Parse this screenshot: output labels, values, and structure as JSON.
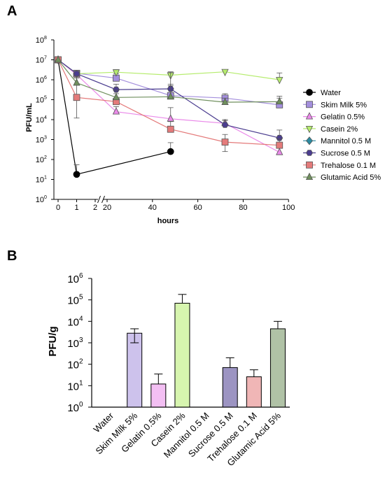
{
  "panels": {
    "a_label": "A",
    "b_label": "B"
  },
  "colors": {
    "water": "#000000",
    "skim_milk": "#a48fdd",
    "gelatin": "#ea8ae9",
    "casein": "#b6ec6e",
    "mannitol": "#2b8aa0",
    "sucrose": "#4b3d8f",
    "trehalose": "#e47a7a",
    "glutamic": "#6f8f5d"
  },
  "chart_data": [
    {
      "type": "line",
      "title": "",
      "xlabel": "hours",
      "ylabel": "PFU/mL",
      "yscale": "log",
      "ylim": [
        1,
        100000000
      ],
      "y_tick_labels": [
        "10",
        "10",
        "10",
        "10",
        "10",
        "10",
        "10",
        "10",
        "10"
      ],
      "y_tick_exponents": [
        "0",
        "1",
        "2",
        "3",
        "4",
        "5",
        "6",
        "7",
        "8"
      ],
      "x_axis_broken": true,
      "x_segments": [
        {
          "range": [
            0,
            2
          ],
          "ticks": [
            "0",
            "1",
            "2"
          ]
        },
        {
          "range": [
            20,
            100
          ],
          "ticks": [
            "20",
            "40",
            "60",
            "80",
            "100"
          ]
        }
      ],
      "legend_position": "right",
      "series": [
        {
          "name": "Water",
          "color_key": "water",
          "marker": "circle",
          "x": [
            0,
            1,
            48
          ],
          "y": [
            10000000,
            18,
            250
          ],
          "err_hi": [
            null,
            55,
            700
          ]
        },
        {
          "name": "Skim Milk 5%",
          "color_key": "skim_milk",
          "marker": "square",
          "x": [
            0,
            1,
            24,
            48,
            72,
            96
          ],
          "y": [
            10000000,
            2100000,
            1200000,
            160000,
            120000,
            55000
          ],
          "err_hi": [
            null,
            3000000,
            2000000,
            500000,
            200000,
            150000
          ]
        },
        {
          "name": "Gelatin 0.5%",
          "color_key": "gelatin",
          "marker": "triangle-up",
          "x": [
            0,
            1,
            24,
            48,
            72,
            96
          ],
          "y": [
            10000000,
            1800000,
            25000,
            11000,
            6500,
            230
          ],
          "err_hi": [
            null,
            2500000,
            45000,
            40000,
            10000,
            null
          ]
        },
        {
          "name": "Casein 2%",
          "color_key": "casein",
          "marker": "triangle-down",
          "x": [
            0,
            1,
            24,
            48,
            72,
            96
          ],
          "y": [
            10000000,
            2000000,
            2400000,
            1700000,
            2500000,
            1000000
          ],
          "err_hi": [
            null,
            3000000,
            3200000,
            2500000,
            3200000,
            2200000
          ]
        },
        {
          "name": "Mannitol 0.5 M",
          "color_key": "mannitol",
          "marker": "diamond",
          "x": [
            0
          ],
          "y": [
            10000000
          ],
          "err_hi": [
            null
          ]
        },
        {
          "name": "Sucrose 0.5 M",
          "color_key": "sucrose",
          "marker": "hexagon",
          "x": [
            0,
            1,
            24,
            48,
            72,
            96
          ],
          "y": [
            10000000,
            2000000,
            320000,
            350000,
            5500,
            1200
          ],
          "err_hi": [
            null,
            2600000,
            600000,
            2300000,
            9000,
            3000
          ]
        },
        {
          "name": "Trehalose 0.1 M",
          "color_key": "trehalose",
          "marker": "square",
          "x": [
            0,
            1,
            24,
            48,
            72,
            96
          ],
          "y": [
            10000000,
            130000,
            80000,
            3300,
            750,
            520
          ],
          "err_hi": [
            null,
            1500000,
            200000,
            8000,
            1800,
            1100
          ],
          "err_lo": [
            null,
            12000,
            null,
            null,
            250,
            null
          ]
        },
        {
          "name": "Glutamic Acid 5%",
          "color_key": "glutamic",
          "marker": "triangle-up",
          "x": [
            0,
            1,
            24,
            48,
            72,
            96
          ],
          "y": [
            10000000,
            700000,
            130000,
            140000,
            75000,
            80000
          ],
          "err_hi": [
            null,
            1200000,
            300000,
            600000,
            120000,
            120000
          ]
        }
      ]
    },
    {
      "type": "bar",
      "title": "",
      "xlabel": "",
      "ylabel": "PFU/g",
      "yscale": "log",
      "ylim": [
        1,
        1000000
      ],
      "y_tick_labels": [
        "10",
        "10",
        "10",
        "10",
        "10",
        "10",
        "10"
      ],
      "y_tick_exponents": [
        "0",
        "1",
        "2",
        "3",
        "4",
        "5",
        "6"
      ],
      "categories": [
        "Water",
        "Skim Milk 5%",
        "Gelatin 0.5%",
        "Casein 2%",
        "Mannitol 0.5 M",
        "Sucrose 0.5 M",
        "Trehalose 0.1 M",
        "Glutamic Acid 5%"
      ],
      "color_keys": [
        "water",
        "skim_milk",
        "gelatin",
        "casein",
        "mannitol",
        "sucrose",
        "trehalose",
        "glutamic"
      ],
      "values": [
        null,
        2800,
        12,
        70000,
        null,
        70,
        26,
        4500
      ],
      "err_hi": [
        null,
        4500,
        35,
        180000,
        null,
        200,
        55,
        10000
      ],
      "err_lo": [
        null,
        1000,
        null,
        null,
        null,
        null,
        null,
        null
      ]
    }
  ]
}
